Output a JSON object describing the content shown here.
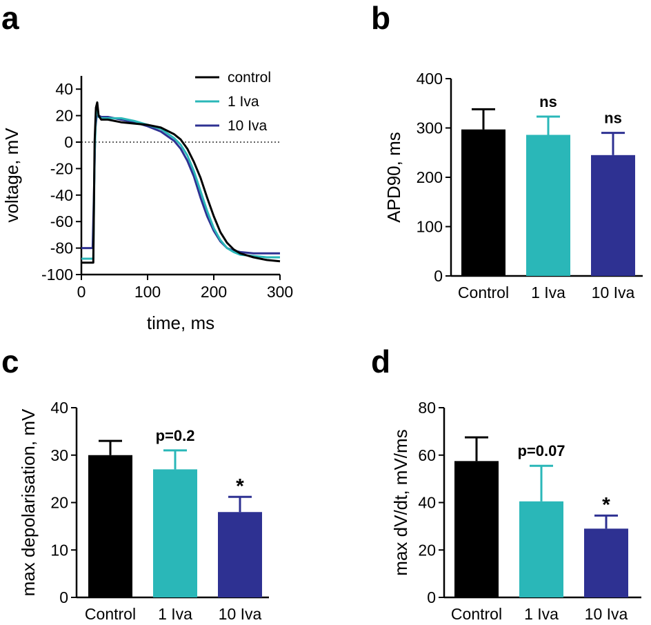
{
  "colors": {
    "control": "#000000",
    "iva1": "#2ab7b8",
    "iva10": "#2e3192"
  },
  "chart_data": [
    {
      "panel": "a",
      "type": "line",
      "xlabel": "time, ms",
      "ylabel": "voltage, mV",
      "xlim": [
        0,
        300
      ],
      "ylim": [
        -100,
        50
      ],
      "xticks": [
        0,
        100,
        200,
        300
      ],
      "yticks": [
        40,
        20,
        0,
        -20,
        -40,
        -60,
        -80,
        -100
      ],
      "reference_line": {
        "y": 0,
        "style": "dotted"
      },
      "legend_position": "top-right",
      "series": [
        {
          "name": "control",
          "x": [
            0,
            18,
            20,
            22,
            24,
            26,
            30,
            40,
            60,
            80,
            100,
            120,
            140,
            150,
            160,
            170,
            180,
            190,
            200,
            210,
            220,
            230,
            240,
            260,
            280,
            300
          ],
          "y": [
            -91,
            -91,
            0,
            26,
            30,
            20,
            17,
            17,
            15,
            14,
            13,
            11,
            6,
            2,
            -5,
            -15,
            -27,
            -42,
            -56,
            -68,
            -76,
            -81,
            -84,
            -87,
            -89,
            -90
          ]
        },
        {
          "name": "1 Iva",
          "x": [
            0,
            18,
            20,
            22,
            24,
            26,
            30,
            40,
            60,
            80,
            100,
            120,
            140,
            150,
            160,
            170,
            180,
            190,
            200,
            210,
            220,
            230,
            240,
            260,
            280,
            300
          ],
          "y": [
            -88,
            -88,
            -10,
            20,
            26,
            19,
            18,
            18,
            18,
            16,
            13,
            10,
            3,
            -2,
            -10,
            -22,
            -37,
            -52,
            -65,
            -74,
            -80,
            -83,
            -85,
            -86,
            -87,
            -87
          ]
        },
        {
          "name": "10 Iva",
          "x": [
            0,
            15,
            17,
            19,
            21,
            23,
            26,
            30,
            40,
            60,
            80,
            100,
            120,
            140,
            150,
            160,
            170,
            180,
            190,
            200,
            210,
            220,
            230,
            240,
            260,
            280,
            300
          ],
          "y": [
            -80,
            -80,
            -80,
            -40,
            10,
            19,
            20,
            19,
            19,
            17,
            15,
            12,
            8,
            1,
            -5,
            -14,
            -26,
            -42,
            -56,
            -67,
            -75,
            -80,
            -82,
            -83,
            -84,
            -84,
            -84
          ]
        }
      ]
    },
    {
      "panel": "b",
      "type": "bar",
      "categories": [
        "Control",
        "1 Iva",
        "10 Iva"
      ],
      "values": [
        297,
        286,
        245
      ],
      "errors": [
        41,
        37,
        45
      ],
      "annotations": [
        "",
        "ns",
        "ns"
      ],
      "ylabel": "APD90, ms",
      "ylim": [
        0,
        400
      ],
      "yticks": [
        0,
        100,
        200,
        300,
        400
      ]
    },
    {
      "panel": "c",
      "type": "bar",
      "categories": [
        "Control",
        "1 Iva",
        "10 Iva"
      ],
      "values": [
        30,
        27,
        18
      ],
      "errors": [
        3,
        4,
        3.2
      ],
      "annotations": [
        "",
        "p=0.2",
        "*"
      ],
      "ylabel": "max depolarisation, mV",
      "ylim": [
        0,
        40
      ],
      "yticks": [
        0,
        10,
        20,
        30,
        40
      ]
    },
    {
      "panel": "d",
      "type": "bar",
      "categories": [
        "Control",
        "1 Iva",
        "10 Iva"
      ],
      "values": [
        57.5,
        40.5,
        29
      ],
      "errors": [
        10,
        15,
        5.5
      ],
      "annotations": [
        "",
        "p=0.07",
        "*"
      ],
      "ylabel": "max dV/dt, mV/ms",
      "ylim": [
        0,
        80
      ],
      "yticks": [
        0,
        20,
        40,
        60,
        80
      ]
    }
  ]
}
